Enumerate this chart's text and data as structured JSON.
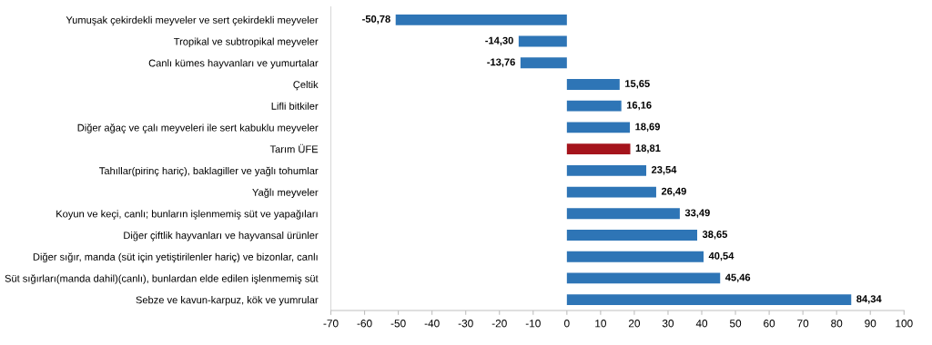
{
  "chart_data": {
    "type": "bar",
    "orientation": "horizontal",
    "categories": [
      "Yumuşak çekirdekli meyveler ve sert çekirdekli meyveler",
      "Tropikal ve subtropikal meyveler",
      "Canlı kümes hayvanları ve yumurtalar",
      "Çeltik",
      "Lifli bitkiler",
      "Diğer ağaç ve çalı meyveleri ile sert kabuklu meyveler",
      "Tarım ÜFE",
      "Tahıllar(pirinç hariç), baklagiller ve yağlı tohumlar",
      "Yağlı meyveler",
      "Koyun ve keçi, canlı; bunların işlenmemiş süt ve yapağıları",
      "Diğer çiftlik hayvanları ve hayvansal ürünler",
      "Diğer sığır, manda (süt için yetiştirilenler hariç) ve bizonlar, canlı",
      "Süt sığırları(manda dahil)(canlı), bunlardan elde edilen işlenmemiş süt",
      "Sebze ve kavun-karpuz, kök ve yumrular"
    ],
    "values": [
      -50.78,
      -14.3,
      -13.76,
      15.65,
      16.16,
      18.69,
      18.81,
      23.54,
      26.49,
      33.49,
      38.65,
      40.54,
      45.46,
      84.34
    ],
    "value_labels": [
      "-50,78",
      "-14,30",
      "-13,76",
      "15,65",
      "16,16",
      "18,69",
      "18,81",
      "23,54",
      "26,49",
      "33,49",
      "38,65",
      "40,54",
      "45,46",
      "84,34"
    ],
    "colors": [
      "#2e75b6",
      "#2e75b6",
      "#2e75b6",
      "#2e75b6",
      "#2e75b6",
      "#2e75b6",
      "#a5141c",
      "#2e75b6",
      "#2e75b6",
      "#2e75b6",
      "#2e75b6",
      "#2e75b6",
      "#2e75b6",
      "#2e75b6"
    ],
    "xlim": [
      -70,
      100
    ],
    "xticks": [
      -70,
      -60,
      -50,
      -40,
      -30,
      -20,
      -10,
      0,
      10,
      20,
      30,
      40,
      50,
      60,
      70,
      80,
      90,
      100
    ],
    "grid": false,
    "legend": false
  }
}
